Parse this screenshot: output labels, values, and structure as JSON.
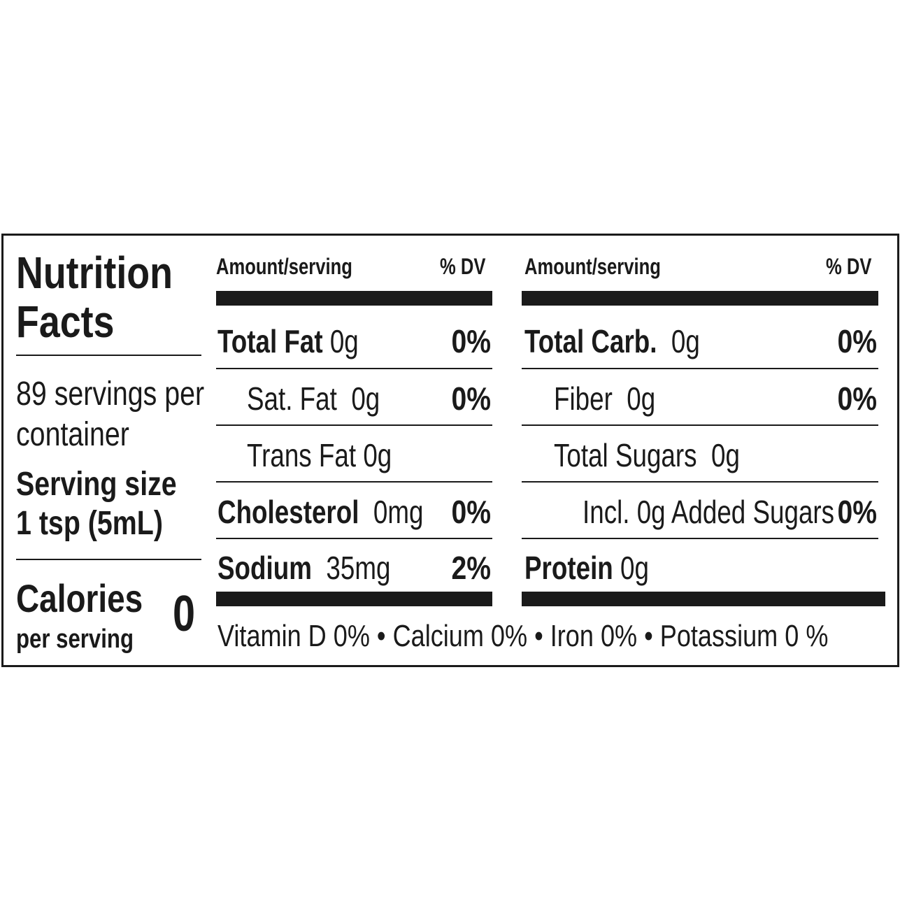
{
  "title": {
    "line1": "Nutrition",
    "line2": "Facts"
  },
  "servings": {
    "line1": "89 servings per",
    "line2": "container"
  },
  "serving_size": {
    "line1": "Serving size",
    "line2": "1 tsp (5mL)"
  },
  "calories": {
    "label": "Calories",
    "sub": "per serving",
    "value": "0"
  },
  "columns": {
    "left_header": {
      "amount": "Amount/serving",
      "dv": "% DV"
    },
    "right_header": {
      "amount": "Amount/serving",
      "dv": "% DV"
    }
  },
  "left_rows": [
    {
      "name": "Total Fat",
      "amount": "0g",
      "dv": "0%"
    },
    {
      "name": "Sat. Fat",
      "amount": "0g",
      "dv": "0%"
    },
    {
      "name": "Trans Fat",
      "amount": "0g",
      "dv": ""
    },
    {
      "name": "Cholesterol",
      "amount": "0mg",
      "dv": "0%"
    },
    {
      "name": "Sodium",
      "amount": "35mg",
      "dv": "2%"
    }
  ],
  "right_rows": [
    {
      "name": "Total Carb.",
      "amount": "0g",
      "dv": "0%"
    },
    {
      "name": "Fiber",
      "amount": "0g",
      "dv": "0%"
    },
    {
      "name": "Total Sugars",
      "amount": "0g",
      "dv": ""
    },
    {
      "name": "Incl. 0g Added Sugars",
      "amount": "",
      "dv": "0%"
    },
    {
      "name": "Protein",
      "amount": "0g",
      "dv": ""
    }
  ],
  "vitamins": "Vitamin D 0% • Calcium 0% • Iron 0% • Potassium 0 %"
}
